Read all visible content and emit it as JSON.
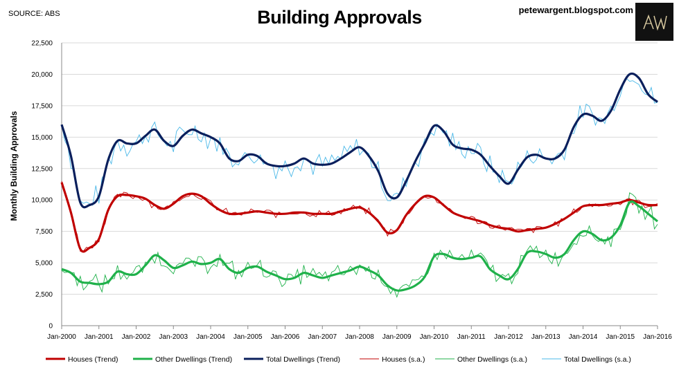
{
  "header": {
    "source": "SOURCE: ABS",
    "title": "Building Approvals",
    "blog": "petewargent.blogspot.com",
    "logo_text": "AW"
  },
  "colors": {
    "houses": "#c00000",
    "other": "#1fb14a",
    "total": "#0a1f5c",
    "total_sa": "#4ab8e8",
    "grid": "#d9d9d9",
    "axis": "#888888"
  },
  "chart_data": {
    "type": "line",
    "title": "Building Approvals",
    "xlabel": "",
    "ylabel": "Monthly Building Approvals",
    "ylim": [
      0,
      22500
    ],
    "xlim": [
      "2000-01",
      "2016-01"
    ],
    "y_ticks": [
      "0",
      "2,500",
      "5,000",
      "7,500",
      "10,000",
      "12,500",
      "15,000",
      "17,500",
      "20,000",
      "22,500"
    ],
    "x_ticks": [
      "Jan-2000",
      "Jan-2001",
      "Jan-2002",
      "Jan-2003",
      "Jan-2004",
      "Jan-2005",
      "Jan-2006",
      "Jan-2007",
      "Jan-2008",
      "Jan-2009",
      "Jan-2010",
      "Jan-2011",
      "Jan-2012",
      "Jan-2013",
      "Jan-2014",
      "Jan-2015",
      "Jan-2016"
    ],
    "grid": true,
    "legend_position": "bottom",
    "series": [
      {
        "name": "Houses (Trend)",
        "kind": "trend",
        "x": [
          "2000-01",
          "2000-04",
          "2000-07",
          "2000-10",
          "2001-01",
          "2001-04",
          "2001-07",
          "2001-10",
          "2002-01",
          "2002-04",
          "2002-07",
          "2002-10",
          "2003-01",
          "2003-04",
          "2003-07",
          "2003-10",
          "2004-01",
          "2004-04",
          "2004-07",
          "2004-10",
          "2005-01",
          "2005-04",
          "2005-07",
          "2005-10",
          "2006-01",
          "2006-04",
          "2006-07",
          "2006-10",
          "2007-01",
          "2007-04",
          "2007-07",
          "2007-10",
          "2008-01",
          "2008-04",
          "2008-07",
          "2008-10",
          "2009-01",
          "2009-04",
          "2009-07",
          "2009-10",
          "2010-01",
          "2010-04",
          "2010-07",
          "2010-10",
          "2011-01",
          "2011-04",
          "2011-07",
          "2011-10",
          "2012-01",
          "2012-04",
          "2012-07",
          "2012-10",
          "2013-01",
          "2013-04",
          "2013-07",
          "2013-10",
          "2014-01",
          "2014-04",
          "2014-07",
          "2014-10",
          "2015-01",
          "2015-04",
          "2015-07",
          "2015-10",
          "2016-01"
        ],
        "values": [
          11400,
          9000,
          6100,
          6200,
          6900,
          9200,
          10300,
          10400,
          10300,
          10100,
          9600,
          9300,
          9700,
          10300,
          10500,
          10300,
          9700,
          9200,
          8900,
          8900,
          9000,
          9100,
          9000,
          8900,
          8900,
          9000,
          9000,
          8900,
          8900,
          8900,
          9100,
          9300,
          9400,
          9000,
          8300,
          7400,
          7600,
          8800,
          9700,
          10300,
          10200,
          9600,
          9000,
          8700,
          8500,
          8300,
          8000,
          7800,
          7700,
          7500,
          7600,
          7700,
          7800,
          8100,
          8500,
          9000,
          9500,
          9600,
          9600,
          9700,
          9800,
          10000,
          9800,
          9600,
          9600
        ]
      },
      {
        "name": "Other Dwellings (Trend)",
        "kind": "trend",
        "x": [
          "2000-01",
          "2000-04",
          "2000-07",
          "2000-10",
          "2001-01",
          "2001-04",
          "2001-07",
          "2001-10",
          "2002-01",
          "2002-04",
          "2002-07",
          "2002-10",
          "2003-01",
          "2003-04",
          "2003-07",
          "2003-10",
          "2004-01",
          "2004-04",
          "2004-07",
          "2004-10",
          "2005-01",
          "2005-04",
          "2005-07",
          "2005-10",
          "2006-01",
          "2006-04",
          "2006-07",
          "2006-10",
          "2007-01",
          "2007-04",
          "2007-07",
          "2007-10",
          "2008-01",
          "2008-04",
          "2008-07",
          "2008-10",
          "2009-01",
          "2009-04",
          "2009-07",
          "2009-10",
          "2010-01",
          "2010-04",
          "2010-07",
          "2010-10",
          "2011-01",
          "2011-04",
          "2011-07",
          "2011-10",
          "2012-01",
          "2012-04",
          "2012-07",
          "2012-10",
          "2013-01",
          "2013-04",
          "2013-07",
          "2013-10",
          "2014-01",
          "2014-04",
          "2014-07",
          "2014-10",
          "2015-01",
          "2015-04",
          "2015-07",
          "2015-10",
          "2016-01"
        ],
        "values": [
          4500,
          4200,
          3500,
          3400,
          3300,
          3500,
          4300,
          4100,
          4100,
          4800,
          5600,
          5200,
          4600,
          4800,
          5100,
          4900,
          5000,
          5300,
          4500,
          4200,
          4600,
          4700,
          4300,
          4000,
          3700,
          3800,
          4200,
          4000,
          3800,
          4000,
          4200,
          4400,
          4700,
          4400,
          4000,
          3200,
          2800,
          2900,
          3200,
          3900,
          5500,
          5700,
          5400,
          5300,
          5400,
          5500,
          4500,
          4000,
          3700,
          4500,
          5800,
          5900,
          5700,
          5400,
          5700,
          6800,
          7500,
          7300,
          6800,
          7000,
          8000,
          9800,
          9500,
          8900,
          8300
        ]
      },
      {
        "name": "Total Dwellings (Trend)",
        "kind": "trend",
        "x": [
          "2000-01",
          "2000-04",
          "2000-07",
          "2000-10",
          "2001-01",
          "2001-04",
          "2001-07",
          "2001-10",
          "2002-01",
          "2002-04",
          "2002-07",
          "2002-10",
          "2003-01",
          "2003-04",
          "2003-07",
          "2003-10",
          "2004-01",
          "2004-04",
          "2004-07",
          "2004-10",
          "2005-01",
          "2005-04",
          "2005-07",
          "2005-10",
          "2006-01",
          "2006-04",
          "2006-07",
          "2006-10",
          "2007-01",
          "2007-04",
          "2007-07",
          "2007-10",
          "2008-01",
          "2008-04",
          "2008-07",
          "2008-10",
          "2009-01",
          "2009-04",
          "2009-07",
          "2009-10",
          "2010-01",
          "2010-04",
          "2010-07",
          "2010-10",
          "2011-01",
          "2011-04",
          "2011-07",
          "2011-10",
          "2012-01",
          "2012-04",
          "2012-07",
          "2012-10",
          "2013-01",
          "2013-04",
          "2013-07",
          "2013-10",
          "2014-01",
          "2014-04",
          "2014-07",
          "2014-10",
          "2015-01",
          "2015-04",
          "2015-07",
          "2015-10",
          "2016-01"
        ],
        "values": [
          16000,
          13500,
          9800,
          9600,
          10300,
          13200,
          14700,
          14500,
          14500,
          15100,
          15600,
          14700,
          14300,
          15100,
          15600,
          15300,
          15000,
          14500,
          13300,
          13100,
          13600,
          13500,
          12900,
          12700,
          12700,
          12900,
          13300,
          12900,
          12800,
          12900,
          13300,
          13800,
          14200,
          13500,
          12300,
          10500,
          10200,
          11500,
          13100,
          14500,
          15900,
          15500,
          14400,
          14100,
          14000,
          13600,
          12700,
          11900,
          11300,
          12400,
          13400,
          13600,
          13300,
          13300,
          14000,
          15800,
          16800,
          16700,
          16300,
          17100,
          18800,
          20000,
          19700,
          18400,
          17800
        ]
      },
      {
        "name": "Houses (s.a.)",
        "kind": "sa"
      },
      {
        "name": "Other Dwellings (s.a.)",
        "kind": "sa"
      },
      {
        "name": "Total Dwellings (s.a.)",
        "kind": "sa"
      }
    ]
  }
}
